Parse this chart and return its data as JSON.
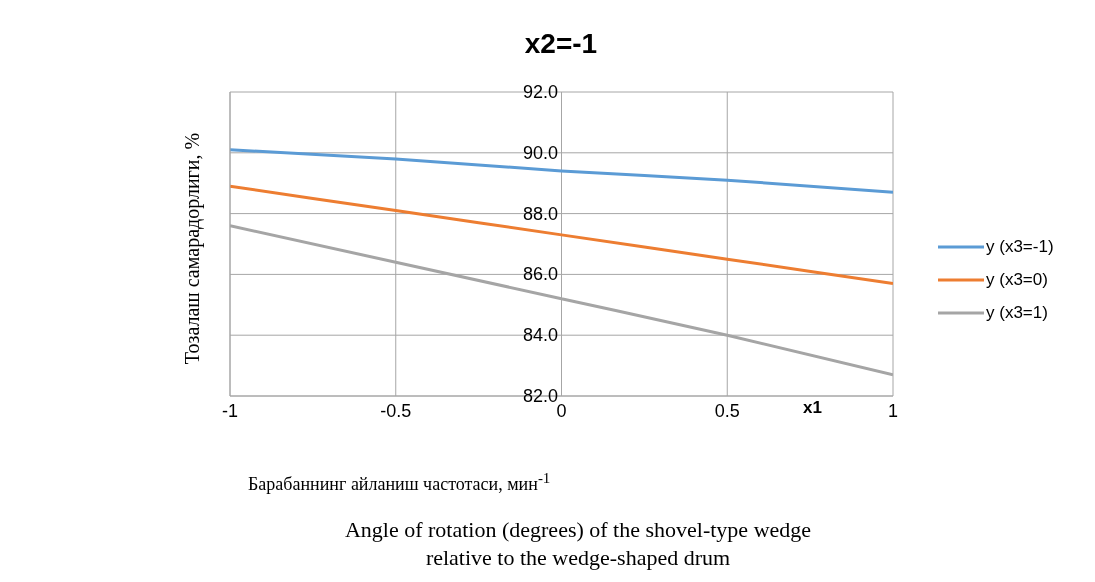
{
  "chart_data": {
    "type": "line",
    "title": "x2=-1",
    "xlabel": "x1",
    "ylabel": "Тозалаш самарадорлиги, %",
    "annotations": [
      "Барабаннинг айланиш частотаси, мин$^{-1}$",
      "Angle of rotation (degrees) of the shovel-type wedge relative to the wedge-shaped drum"
    ],
    "x": [
      -1,
      -0.5,
      0,
      0.5,
      1
    ],
    "series": [
      {
        "name": "y (x3=-1)",
        "color": "#5b9bd5",
        "values": [
          90.1,
          89.8,
          89.4,
          89.1,
          88.7
        ]
      },
      {
        "name": "y (x3=0)",
        "color": "#ed7d31",
        "values": [
          88.9,
          88.1,
          87.3,
          86.5,
          85.7
        ]
      },
      {
        "name": "y (x3=1)",
        "color": "#a5a5a5",
        "values": [
          87.6,
          86.4,
          85.2,
          84.0,
          82.7
        ]
      }
    ],
    "xlim": [
      -1,
      1
    ],
    "xticks": [
      -1,
      -0.5,
      0,
      0.5,
      1
    ],
    "ylim": [
      82,
      92
    ],
    "yticks": [
      {
        "value": 82,
        "label": "82.0"
      },
      {
        "value": 84,
        "label": "84.0"
      },
      {
        "value": 86,
        "label": "86.0"
      },
      {
        "value": 88,
        "label": "88.0"
      },
      {
        "value": 90,
        "label": "90.0"
      },
      {
        "value": 92,
        "label": "92.0"
      }
    ],
    "grid": true,
    "legend": "right",
    "marker": "none",
    "line_style": "solid"
  }
}
